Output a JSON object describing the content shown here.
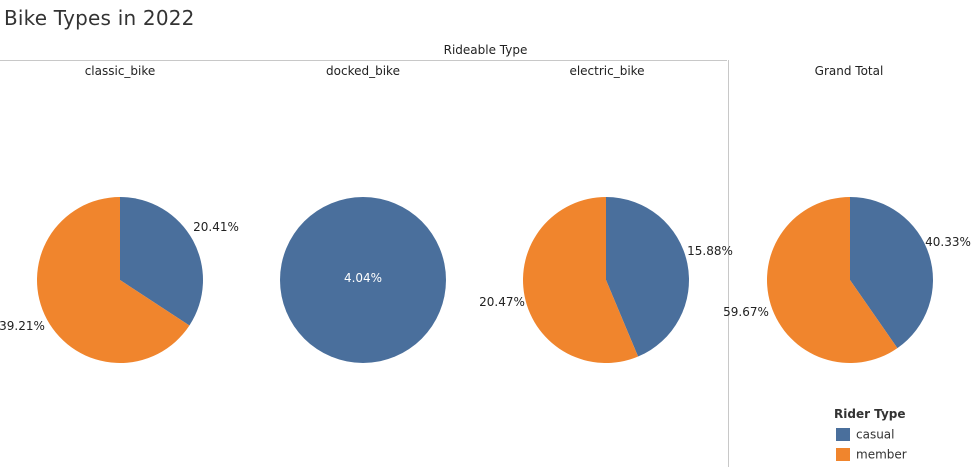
{
  "title": "Bike Types in 2022",
  "group_header": "Rideable Type",
  "columns": [
    "classic_bike",
    "docked_bike",
    "electric_bike",
    "Grand Total"
  ],
  "legend": {
    "title": "Rider Type",
    "items": [
      {
        "label": "casual",
        "color": "#4A6F9C"
      },
      {
        "label": "member",
        "color": "#F0852D"
      }
    ]
  },
  "chart_data": {
    "type": "pie",
    "title": "Bike Types in 2022",
    "facet_label": "Rideable Type",
    "legend_title": "Rider Type",
    "legend_placement": "bottom-right",
    "colors": {
      "casual": "#4A6F9C",
      "member": "#F0852D"
    },
    "pies": [
      {
        "category": "classic_bike",
        "slices": [
          {
            "name": "casual",
            "value": 20.41,
            "label": "20.41%"
          },
          {
            "name": "member",
            "value": 39.21,
            "label": "39.21%"
          }
        ]
      },
      {
        "category": "docked_bike",
        "slices": [
          {
            "name": "casual",
            "value": 4.04,
            "label": "4.04%"
          }
        ]
      },
      {
        "category": "electric_bike",
        "slices": [
          {
            "name": "casual",
            "value": 15.88,
            "label": "15.88%"
          },
          {
            "name": "member",
            "value": 20.47,
            "label": "20.47%"
          }
        ]
      },
      {
        "category": "Grand Total",
        "slices": [
          {
            "name": "casual",
            "value": 40.33,
            "label": "40.33%"
          },
          {
            "name": "member",
            "value": 59.67,
            "label": "59.67%"
          }
        ]
      }
    ]
  }
}
